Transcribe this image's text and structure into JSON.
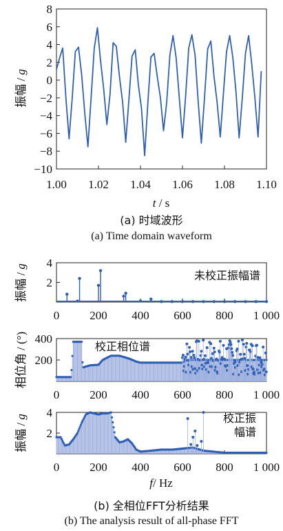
{
  "chart_data": [
    {
      "type": "line",
      "id": "a",
      "xlabel_var": "t",
      "xlabel_unit": " / s",
      "ylabel_cn": "振幅",
      "ylabel_unit": "g",
      "xlim": [
        1.0,
        1.1
      ],
      "ylim": [
        -10,
        8
      ],
      "xticks": [
        "1.00",
        "1.02",
        "1.04",
        "1.06",
        "1.08",
        "1.10"
      ],
      "yticks": [
        "8",
        "6",
        "4",
        "2",
        "0",
        "−2",
        "−4",
        "−6",
        "−8",
        "−10"
      ],
      "color": "#2f5fb3",
      "series": [
        {
          "x": [
            1.0,
            1.0015,
            1.003,
            1.0045,
            1.006,
            1.0075,
            1.009,
            1.0105,
            1.012,
            1.0135,
            1.015,
            1.0165,
            1.018,
            1.0195,
            1.021,
            1.0225,
            1.024,
            1.0255,
            1.027,
            1.0285,
            1.03,
            1.0315,
            1.033,
            1.0345,
            1.036,
            1.0375,
            1.039,
            1.0405,
            1.042,
            1.0435,
            1.045,
            1.0465,
            1.048,
            1.0495,
            1.051,
            1.0525,
            1.054,
            1.0555,
            1.057,
            1.0585,
            1.06,
            1.0615,
            1.063,
            1.0645,
            1.066,
            1.0675,
            1.069,
            1.0705,
            1.072,
            1.0735,
            1.075,
            1.0765,
            1.078,
            1.0795,
            1.081,
            1.0825,
            1.084,
            1.0855,
            1.087,
            1.0885,
            1.09,
            1.0915,
            1.093,
            1.0945,
            1.096,
            1.0975
          ],
          "y": [
            1.2,
            2.5,
            3.6,
            -2.0,
            -6.6,
            -2.0,
            3.2,
            3.7,
            0.6,
            -3.8,
            -7.5,
            -2.0,
            3.6,
            5.9,
            2.2,
            -1.0,
            -5.0,
            -1.6,
            4.2,
            3.8,
            0.4,
            -2.5,
            -7.0,
            -2.2,
            2.7,
            3.4,
            -0.5,
            -3.2,
            -8.5,
            -2.6,
            2.6,
            3.0,
            0.4,
            -2.0,
            -5.7,
            -2.5,
            2.8,
            5.0,
            2.5,
            -2.0,
            -6.5,
            -1.8,
            3.6,
            5.1,
            2.8,
            -2.5,
            -7.1,
            -2.0,
            3.5,
            4.4,
            0.5,
            -2.5,
            -6.4,
            -1.5,
            3.2,
            5.0,
            2.5,
            -1.4,
            -6.5,
            -2.0,
            3.0,
            5.0,
            1.8,
            -2.0,
            -6.4,
            1.0
          ]
        }
      ],
      "caption_cn": "(a)  时域波形",
      "caption_en": "(a)  Time domain waveform"
    },
    {
      "type": "stem",
      "id": "b1",
      "ylabel_cn": "振幅",
      "ylabel_unit": "g",
      "annotation": "未校正振幅谱",
      "xlim": [
        0,
        1000
      ],
      "ylim": [
        0,
        4
      ],
      "xticks": [
        "0",
        "200",
        "400",
        "600",
        "800",
        "1 000"
      ],
      "yticks": [
        "4",
        "2"
      ],
      "x": [
        50,
        100,
        110,
        200,
        210,
        320,
        330,
        400,
        450,
        500,
        550,
        600,
        650,
        700,
        750,
        800,
        850,
        900,
        950,
        1000
      ],
      "y": [
        0.8,
        0.1,
        2.4,
        1.7,
        3.2,
        0.6,
        0.9,
        0.1,
        0.3,
        0.05,
        0.05,
        0.05,
        0.05,
        0.05,
        0.05,
        0.05,
        0.05,
        0.05,
        0.05,
        0.05
      ]
    },
    {
      "type": "bar",
      "id": "b2",
      "ylabel_cn": "相位角",
      "ylabel_unit": "(°)",
      "annotation": "校正相位谱",
      "xlim": [
        0,
        1000
      ],
      "ylim": [
        0,
        400
      ],
      "xticks": [
        "0",
        "200",
        "400",
        "600",
        "800",
        "1 000"
      ],
      "yticks": [
        "400",
        "200"
      ],
      "profile_x": [
        0,
        70,
        80,
        120,
        125,
        160,
        200,
        220,
        260,
        300,
        350,
        380,
        400,
        600,
        620,
        1000
      ],
      "profile_y": [
        40,
        40,
        370,
        370,
        130,
        150,
        155,
        200,
        240,
        240,
        210,
        185,
        175,
        175,
        200,
        200
      ]
    },
    {
      "type": "bar",
      "id": "b3",
      "ylabel_cn": "振幅",
      "ylabel_unit": "g",
      "annotation_line1": "校正振",
      "annotation_line2": "幅谱",
      "xlabel_var": "f",
      "xlabel_unit": "/ Hz",
      "xlim": [
        0,
        1000
      ],
      "ylim": [
        0,
        4
      ],
      "xticks": [
        "0",
        "200",
        "400",
        "600",
        "800",
        "1 000"
      ],
      "yticks": [
        "4",
        "2"
      ],
      "profile_x": [
        0,
        20,
        40,
        60,
        80,
        100,
        120,
        140,
        160,
        180,
        200,
        220,
        240,
        260,
        280,
        300,
        320,
        340,
        360,
        380,
        400,
        450,
        500,
        550,
        600,
        650,
        700,
        750,
        800,
        900,
        1000
      ],
      "profile_y": [
        1.6,
        1.6,
        0.8,
        0.9,
        1.4,
        2.0,
        3.0,
        3.8,
        4.0,
        3.9,
        3.8,
        3.9,
        3.9,
        4.0,
        1.6,
        1.1,
        1.2,
        1.4,
        1.0,
        0.4,
        0.2,
        0.3,
        0.4,
        0.4,
        0.5,
        0.6,
        0.3,
        0.2,
        0.1,
        0.1,
        0.1
      ],
      "caption_cn": "(b)  全相位FFT分析结果",
      "caption_en": "(b)  The analysis result of all-phase FFT"
    }
  ]
}
